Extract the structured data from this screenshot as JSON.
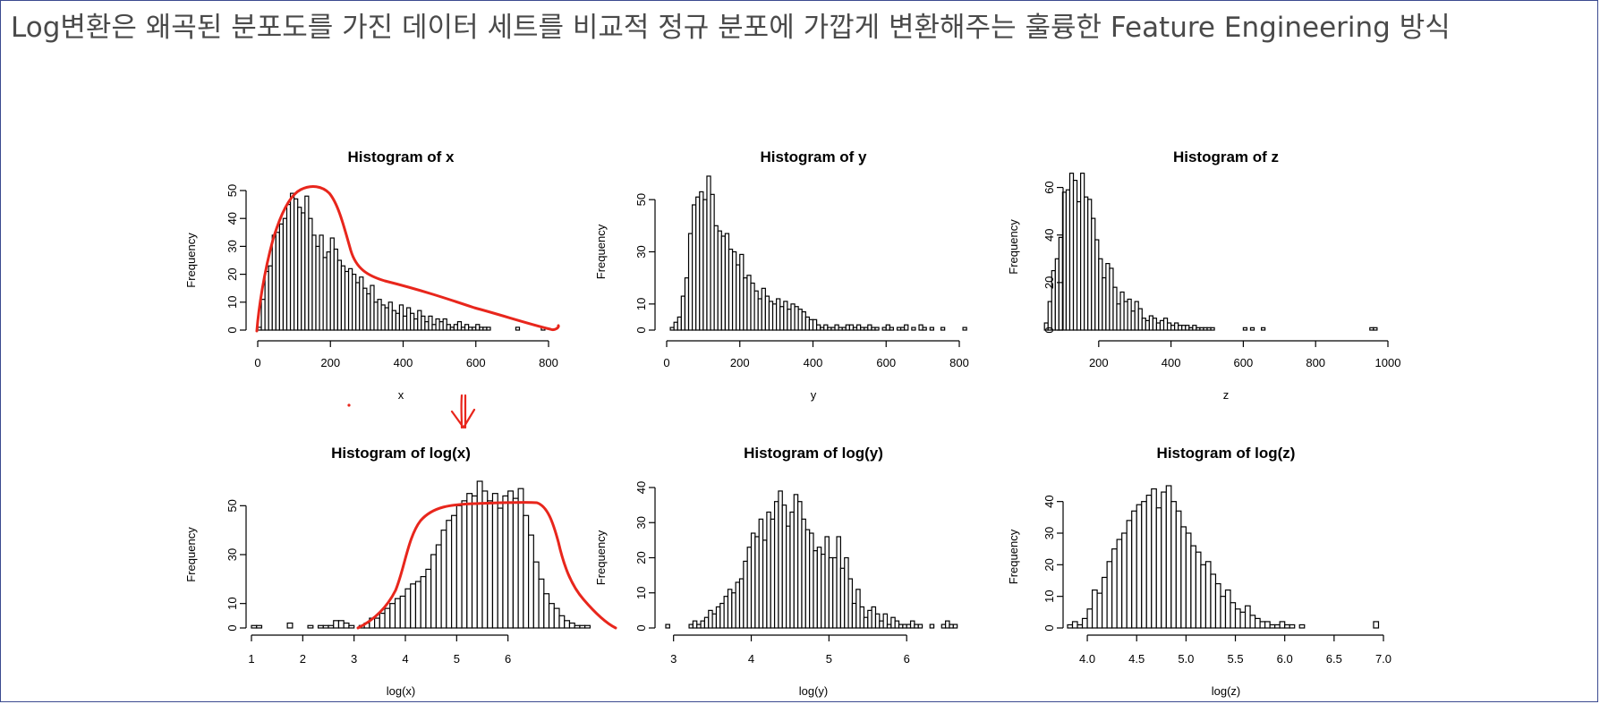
{
  "slide": {
    "title": "Log변환은 왜곡된 분포도를 가진 데이터 세트를 비교적 정규 분포에 가깝게 변환해주는 훌륭한 Feature Engineering 방식"
  },
  "annotations": {
    "ink_color": "#e8261c",
    "arrow": "down-arrow"
  },
  "chart_data": [
    {
      "type": "bar",
      "title": "Histogram of x",
      "xlabel": "x",
      "ylabel": "Frequency",
      "xlim": [
        0,
        800
      ],
      "ylim": [
        0,
        50
      ],
      "xticks": [
        0,
        200,
        400,
        600,
        800
      ],
      "yticks": [
        0,
        10,
        20,
        30,
        40,
        50
      ],
      "bin_start": 0,
      "bin_width": 10,
      "values": [
        1,
        11,
        21,
        23,
        34,
        35,
        38,
        40,
        45,
        49,
        47,
        44,
        42,
        48,
        40,
        34,
        30,
        34,
        26,
        28,
        33,
        29,
        25,
        23,
        21,
        22,
        20,
        17,
        19,
        15,
        13,
        16,
        10,
        11,
        9,
        8,
        10,
        7,
        6,
        9,
        5,
        8,
        6,
        4,
        7,
        5,
        3,
        5,
        2,
        4,
        3,
        4,
        2,
        1,
        2,
        3,
        1,
        2,
        1,
        1,
        2,
        1,
        1,
        1,
        0,
        0,
        0,
        0,
        0,
        0,
        0,
        1,
        0,
        0,
        0,
        0,
        0,
        0,
        1
      ]
    },
    {
      "type": "bar",
      "title": "Histogram of y",
      "xlabel": "y",
      "ylabel": "Frequency",
      "xlim": [
        0,
        800
      ],
      "ylim": [
        0,
        60
      ],
      "xticks": [
        0,
        200,
        400,
        600,
        800
      ],
      "yticks": [
        0,
        10,
        30,
        50
      ],
      "bin_start": 0,
      "bin_width": 10,
      "values": [
        0,
        1,
        3,
        5,
        13,
        20,
        37,
        48,
        51,
        53,
        50,
        59,
        52,
        40,
        38,
        36,
        37,
        31,
        30,
        25,
        29,
        20,
        21,
        18,
        15,
        12,
        16,
        13,
        11,
        10,
        12,
        9,
        11,
        8,
        10,
        9,
        8,
        7,
        5,
        4,
        4,
        2,
        1,
        2,
        1,
        1,
        2,
        1,
        1,
        2,
        2,
        1,
        2,
        1,
        1,
        2,
        1,
        1,
        0,
        1,
        2,
        1,
        0,
        1,
        1,
        2,
        0,
        1,
        0,
        2,
        1,
        0,
        1,
        0,
        0,
        1,
        0,
        0,
        0,
        0,
        0,
        1
      ]
    },
    {
      "type": "bar",
      "title": "Histogram of z",
      "xlabel": "z",
      "ylabel": "Frequency",
      "xlim": [
        0,
        1000
      ],
      "ylim": [
        0,
        70
      ],
      "xticks": [
        200,
        400,
        600,
        800,
        1000
      ],
      "yticks": [
        0,
        20,
        40,
        60
      ],
      "bin_start": 50,
      "bin_width": 10,
      "values": [
        3,
        12,
        25,
        30,
        39,
        58,
        59,
        66,
        63,
        54,
        66,
        56,
        55,
        47,
        38,
        30,
        22,
        28,
        26,
        18,
        11,
        16,
        12,
        13,
        8,
        12,
        9,
        5,
        4,
        6,
        5,
        3,
        4,
        5,
        3,
        2,
        3,
        2,
        2,
        2,
        1,
        2,
        1,
        1,
        1,
        1,
        1,
        0,
        0,
        0,
        0,
        0,
        0,
        0,
        0,
        1,
        0,
        1,
        0,
        0,
        1,
        0,
        0,
        0,
        0,
        0,
        0,
        0,
        0,
        0,
        0,
        0,
        0,
        0,
        0,
        0,
        0,
        0,
        0,
        0,
        0,
        0,
        0,
        0,
        0,
        0,
        0,
        0,
        0,
        0,
        1,
        1
      ]
    },
    {
      "type": "bar",
      "title": "Histogram of log(x)",
      "xlabel": "log(x)",
      "ylabel": "Frequency",
      "xlim": [
        1,
        7
      ],
      "ylim": [
        0,
        60
      ],
      "xticks": [
        1,
        2,
        3,
        4,
        5,
        6
      ],
      "yticks": [
        0,
        10,
        30,
        50
      ],
      "bin_start": 1,
      "bin_width": 0.1,
      "values": [
        1,
        1,
        0,
        0,
        0,
        0,
        0,
        2,
        0,
        0,
        0,
        1,
        0,
        1,
        1,
        1,
        3,
        3,
        2,
        1,
        0,
        1,
        2,
        4,
        4,
        6,
        8,
        10,
        12,
        13,
        16,
        18,
        19,
        21,
        24,
        30,
        34,
        40,
        44,
        46,
        50,
        52,
        55,
        54,
        60,
        56,
        52,
        55,
        49,
        54,
        56,
        53,
        57,
        46,
        38,
        27,
        20,
        14,
        10,
        8,
        5,
        3,
        2,
        1,
        1,
        1
      ]
    },
    {
      "type": "bar",
      "title": "Histogram of log(y)",
      "xlabel": "log(y)",
      "ylabel": "Frequency",
      "xlim": [
        2.9,
        6.7
      ],
      "ylim": [
        0,
        40
      ],
      "xticks": [
        3,
        4,
        5,
        6
      ],
      "yticks": [
        0,
        10,
        20,
        30,
        40
      ],
      "bin_start": 2.9,
      "bin_width": 0.05,
      "values": [
        1,
        0,
        0,
        0,
        0,
        0,
        1,
        2,
        1,
        2,
        3,
        5,
        4,
        6,
        7,
        9,
        11,
        10,
        13,
        14,
        19,
        23,
        27,
        26,
        31,
        25,
        33,
        31,
        36,
        39,
        35,
        29,
        33,
        38,
        36,
        31,
        28,
        27,
        22,
        23,
        21,
        26,
        20,
        20,
        26,
        17,
        20,
        14,
        7,
        11,
        6,
        3,
        5,
        6,
        4,
        2,
        4,
        1,
        3,
        2,
        1,
        1,
        1,
        2,
        1,
        1,
        0,
        0,
        1,
        0,
        0,
        1,
        2,
        1,
        1
      ]
    },
    {
      "type": "bar",
      "title": "Histogram of log(z)",
      "xlabel": "log(z)",
      "ylabel": "Frequency",
      "xlim": [
        3.8,
        7.0
      ],
      "ylim": [
        0,
        45
      ],
      "xticks": [
        4.0,
        4.5,
        5.0,
        5.5,
        6.0,
        6.5,
        7.0
      ],
      "yticks": [
        0,
        10,
        20,
        30,
        40
      ],
      "bin_start": 3.8,
      "bin_width": 0.05,
      "values": [
        1,
        2,
        1,
        3,
        6,
        12,
        11,
        16,
        21,
        25,
        28,
        30,
        34,
        37,
        39,
        40,
        42,
        44,
        38,
        43,
        45,
        40,
        37,
        32,
        30,
        26,
        24,
        20,
        21,
        17,
        14,
        10,
        12,
        8,
        6,
        5,
        7,
        4,
        3,
        2,
        2,
        1,
        1,
        2,
        1,
        1,
        0,
        1,
        0,
        0,
        0,
        0,
        0,
        0,
        0,
        0,
        0,
        0,
        0,
        0,
        0,
        0,
        2
      ]
    }
  ]
}
